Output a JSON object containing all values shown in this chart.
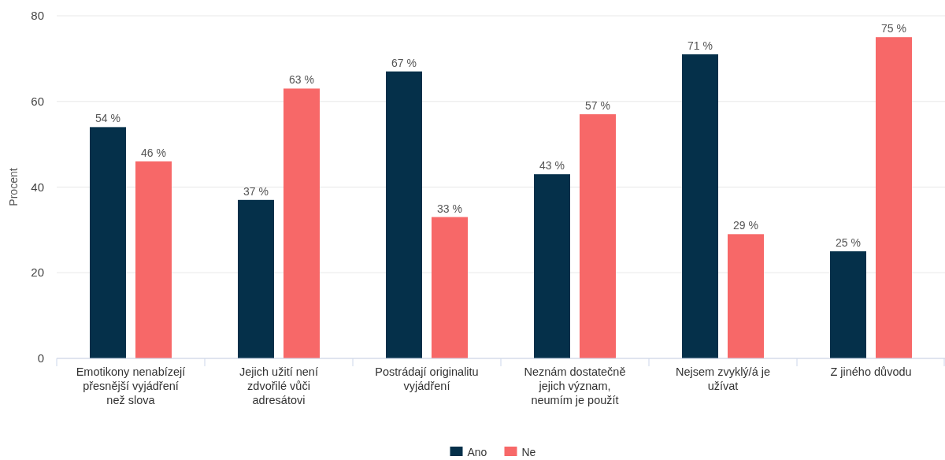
{
  "chart_data": {
    "type": "bar",
    "ylabel": "Procent",
    "categories": [
      "Emotikony nenabízejí\npřesnější vyjádření\nnež slova",
      "Jejich užití není\nzdvořilé vůči\nadresátovi",
      "Postrádají originalitu\nvyjádření",
      "Neznám dostatečně\njejich význam,\nneumím je použít",
      "Nejsem zvyklý/á je\nužívat",
      "Z jiného důvodu"
    ],
    "series": [
      {
        "name": "Ano",
        "color": "#05304a",
        "values": [
          54,
          37,
          67,
          43,
          71,
          25
        ],
        "value_labels": [
          "54 %",
          "37 %",
          "67 %",
          "43 %",
          "71 %",
          "25 %"
        ]
      },
      {
        "name": "Ne",
        "color": "#f76868",
        "values": [
          46,
          63,
          33,
          57,
          29,
          75
        ],
        "value_labels": [
          "46 %",
          "63 %",
          "33 %",
          "57 %",
          "29 %",
          "75 %"
        ]
      }
    ],
    "ylim": [
      0,
      80
    ],
    "yticks": [
      0,
      20,
      40,
      60,
      80
    ],
    "grid": "y",
    "legend": "bottom"
  }
}
